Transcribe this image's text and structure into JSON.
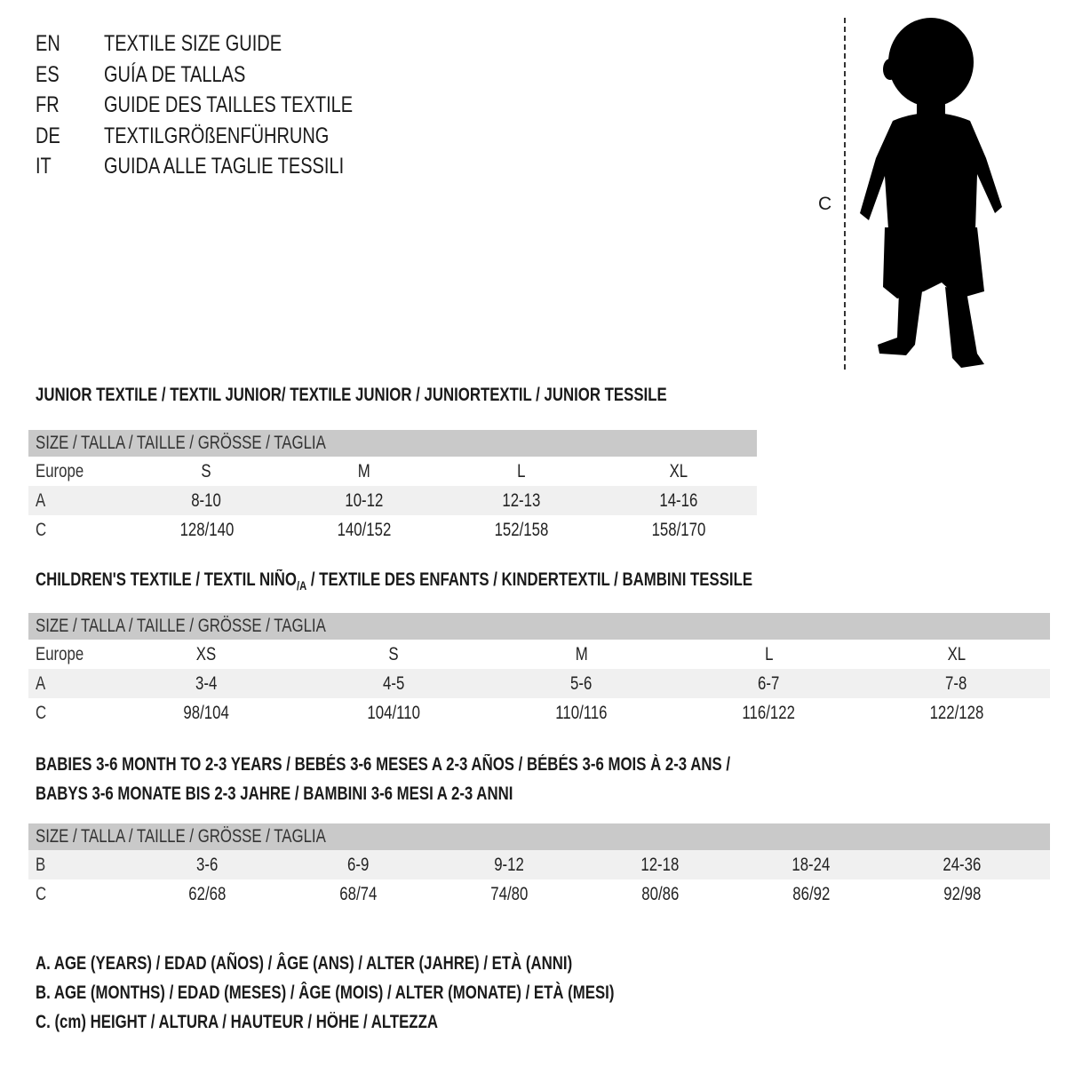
{
  "titles": [
    {
      "code": "EN",
      "text": "TEXTILE SIZE GUIDE"
    },
    {
      "code": "ES",
      "text": "GUÍA DE TALLAS"
    },
    {
      "code": "FR",
      "text": "GUIDE DES TAILLES TEXTILE"
    },
    {
      "code": "DE",
      "text": "TEXTILGRÖßENFÜHRUNG"
    },
    {
      "code": "IT",
      "text": "GUIDA ALLE TAGLIE TESSILI"
    }
  ],
  "figure": {
    "measure_label": "C",
    "icon": "child-silhouette"
  },
  "junior": {
    "title": "JUNIOR TEXTILE / TEXTIL JUNIOR/ TEXTILE JUNIOR / JUNIORTEXTIL / JUNIOR TESSILE",
    "header": "SIZE / TALLA / TAILLE / GRÖSSE / TAGLIA",
    "rows": [
      {
        "label": "Europe",
        "values": [
          "S",
          "M",
          "L",
          "XL"
        ]
      },
      {
        "label": "A",
        "values": [
          "8-10",
          "10-12",
          "12-13",
          "14-16"
        ]
      },
      {
        "label": "C",
        "values": [
          "128/140",
          "140/152",
          "152/158",
          "158/170"
        ]
      }
    ]
  },
  "children": {
    "title_pre": "CHILDREN'S TEXTILE / TEXTIL NIÑO",
    "title_sub": "/A",
    "title_post": " / TEXTILE DES ENFANTS / KINDERTEXTIL / BAMBINI TESSILE",
    "header": "SIZE / TALLA / TAILLE / GRÖSSE / TAGLIA",
    "rows": [
      {
        "label": "Europe",
        "values": [
          "XS",
          "S",
          "M",
          "L",
          "XL"
        ]
      },
      {
        "label": "A",
        "values": [
          "3-4",
          "4-5",
          "5-6",
          "6-7",
          "7-8"
        ]
      },
      {
        "label": "C",
        "values": [
          "98/104",
          "104/110",
          "110/116",
          "116/122",
          "122/128"
        ]
      }
    ]
  },
  "babies": {
    "title_line1": "BABIES 3-6 MONTH TO 2-3 YEARS / BEBÉS 3-6 MESES A 2-3 AÑOS / BÉBÉS 3-6 MOIS À 2-3 ANS /",
    "title_line2": "BABYS 3-6 MONATE BIS 2-3 JAHRE / BAMBINI 3-6 MESI A 2-3 ANNI",
    "header": "SIZE / TALLA / TAILLE / GRÖSSE / TAGLIA",
    "rows": [
      {
        "label": "B",
        "values": [
          "3-6",
          "6-9",
          "9-12",
          "12-18",
          "18-24",
          "24-36"
        ]
      },
      {
        "label": "C",
        "values": [
          "62/68",
          "68/74",
          "74/80",
          "80/86",
          "86/92",
          "92/98"
        ]
      }
    ]
  },
  "legend": [
    "A. AGE (YEARS) / EDAD (AÑOS) / ÂGE (ANS) / ALTER (JAHRE) / ETÀ (ANNI)",
    "B. AGE (MONTHS) / EDAD (MESES) / ÂGE (MOIS) / ALTER (MONATE) / ETÀ (MESI)",
    "C. (cm) HEIGHT / ALTURA / HAUTEUR / HÖHE / ALTEZZA"
  ]
}
